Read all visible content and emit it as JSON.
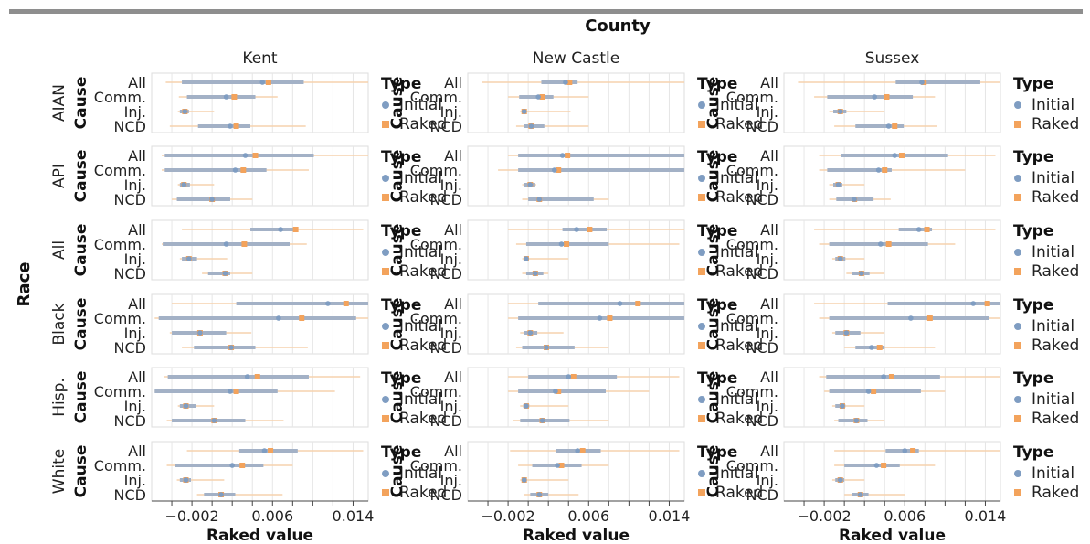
{
  "header": {
    "title": "County"
  },
  "chart_data": {
    "type": "interval-facet-grid",
    "column_facet_title": "County",
    "row_facet_title": "Race",
    "columns": [
      "Kent",
      "New Castle",
      "Sussex"
    ],
    "rows": [
      "AIAN",
      "API",
      "All",
      "Black",
      "Hisp.",
      "White"
    ],
    "y_title": "Cause",
    "causes": [
      "All",
      "Comm.",
      "Inj.",
      "NCD"
    ],
    "xlabel": "Raked value",
    "xlim": [
      -0.006,
      0.0155
    ],
    "xticks": [
      -0.002,
      0.006,
      0.014
    ],
    "xtick_labels": [
      "−0.002",
      "0.006",
      "0.014"
    ],
    "legend": {
      "title": "Type",
      "placement": "right",
      "items": [
        {
          "label": "Initial",
          "color": "#7f9dc2",
          "shape": "circle"
        },
        {
          "label": "Raked",
          "color": "#f3a35c",
          "shape": "square"
        }
      ]
    },
    "series_colors": {
      "Initial": "#7f9dc2",
      "Raked": "#f3a35c",
      "initial_band": "#a3b1c6",
      "raked_band": "#f6d2ad"
    },
    "grid": true,
    "panels": {
      "Kent": {
        "AIAN": {
          "All": {
            "initial": [
              0.005,
              -0.003,
              0.0091
            ],
            "raked": [
              0.0056,
              -0.0046,
              0.0165
            ]
          },
          "Comm.": {
            "initial": [
              0.0014,
              -0.0025,
              0.0043
            ],
            "raked": [
              0.0022,
              -0.0033,
              0.0065
            ]
          },
          "Inj.": {
            "initial": [
              -0.0027,
              -0.0032,
              -0.0023
            ],
            "raked": [
              -0.0027,
              -0.0034,
              0.0002
            ]
          },
          "NCD": {
            "initial": [
              0.0018,
              -0.0014,
              0.0038
            ],
            "raked": [
              0.0024,
              -0.0042,
              0.0093
            ]
          }
        },
        "API": {
          "All": {
            "initial": [
              0.0033,
              -0.0047,
              0.0101
            ],
            "raked": [
              0.0043,
              -0.005,
              0.017
            ]
          },
          "Comm.": {
            "initial": [
              0.0023,
              -0.0047,
              0.0054
            ],
            "raked": [
              0.0031,
              -0.005,
              0.0096
            ]
          },
          "Inj.": {
            "initial": [
              -0.0028,
              -0.0032,
              -0.0022
            ],
            "raked": [
              -0.0028,
              -0.0034,
              0.0002
            ]
          },
          "NCD": {
            "initial": [
              0.0,
              -0.0035,
              0.0018
            ],
            "raked": [
              0.0,
              -0.004,
              0.004
            ]
          }
        },
        "All": {
          "All": {
            "initial": [
              0.0068,
              0.0038,
              0.0083
            ],
            "raked": [
              0.0083,
              -0.003,
              0.015
            ]
          },
          "Comm.": {
            "initial": [
              0.0014,
              -0.0049,
              0.0077
            ],
            "raked": [
              0.0032,
              -0.005,
              0.0094
            ]
          },
          "Inj.": {
            "initial": [
              -0.0023,
              -0.003,
              -0.0015
            ],
            "raked": [
              -0.0023,
              -0.0032,
              0.0015
            ]
          },
          "NCD": {
            "initial": [
              0.0013,
              -0.0004,
              0.0018
            ],
            "raked": [
              0.0013,
              -0.001,
              0.004
            ]
          }
        },
        "Black": {
          "All": {
            "initial": [
              0.0115,
              0.0024,
              0.02
            ],
            "raked": [
              0.0133,
              -0.004,
              0.02
            ]
          },
          "Comm.": {
            "initial": [
              0.0066,
              -0.0053,
              0.0143
            ],
            "raked": [
              0.0089,
              -0.0057,
              0.018
            ]
          },
          "Inj.": {
            "initial": [
              -0.0012,
              -0.004,
              0.0014
            ],
            "raked": [
              -0.0012,
              -0.0042,
              0.0039
            ]
          },
          "NCD": {
            "initial": [
              0.0019,
              -0.0018,
              0.0043
            ],
            "raked": [
              0.0019,
              -0.003,
              0.0095
            ]
          }
        },
        "Hisp.": {
          "All": {
            "initial": [
              0.0035,
              -0.0044,
              0.0096
            ],
            "raked": [
              0.0045,
              -0.0048,
              0.0147
            ]
          },
          "Comm.": {
            "initial": [
              0.0018,
              -0.0057,
              0.0065
            ],
            "raked": [
              0.0024,
              -0.0057,
              0.0122
            ]
          },
          "Inj.": {
            "initial": [
              -0.0026,
              -0.0032,
              -0.0016
            ],
            "raked": [
              -0.0026,
              -0.0034,
              0.0002
            ]
          },
          "NCD": {
            "initial": [
              0.0002,
              -0.004,
              0.0033
            ],
            "raked": [
              0.0002,
              -0.0045,
              0.0071
            ]
          }
        },
        "White": {
          "All": {
            "initial": [
              0.0052,
              0.0027,
              0.0085
            ],
            "raked": [
              0.0058,
              -0.0025,
              0.015
            ]
          },
          "Comm.": {
            "initial": [
              0.002,
              -0.0037,
              0.0051
            ],
            "raked": [
              0.003,
              -0.0045,
              0.008
            ]
          },
          "Inj.": {
            "initial": [
              -0.0026,
              -0.0032,
              -0.0021
            ],
            "raked": [
              -0.0026,
              -0.0035,
              0.0012
            ]
          },
          "NCD": {
            "initial": [
              0.0009,
              -0.0008,
              0.0023
            ],
            "raked": [
              0.0009,
              -0.0015,
              0.007
            ]
          }
        }
      },
      "New Castle": {
        "AIAN": {
          "All": {
            "initial": [
              0.0037,
              0.0013,
              0.0049
            ],
            "raked": [
              0.0041,
              -0.0046,
              0.0165
            ]
          },
          "Comm.": {
            "initial": [
              0.001,
              -0.0009,
              0.0025
            ],
            "raked": [
              0.0014,
              -0.002,
              0.006
            ]
          },
          "Inj.": {
            "initial": [
              -0.0004,
              -0.0006,
              -0.0002
            ],
            "raked": [
              -0.0004,
              -0.0008,
              0.0042
            ]
          },
          "NCD": {
            "initial": [
              0.0003,
              -0.0004,
              0.0016
            ],
            "raked": [
              0.0003,
              -0.0012,
              0.006
            ]
          }
        },
        "API": {
          "All": {
            "initial": [
              0.0034,
              -0.001,
              0.02
            ],
            "raked": [
              0.0039,
              -0.002,
              0.02
            ]
          },
          "Comm.": {
            "initial": [
              0.0026,
              -0.001,
              0.0172
            ],
            "raked": [
              0.003,
              -0.003,
              0.02
            ]
          },
          "Inj.": {
            "initial": [
              0.0002,
              -0.0004,
              0.0007
            ],
            "raked": [
              0.0002,
              -0.0006,
              0.0008
            ]
          },
          "NCD": {
            "initial": [
              0.0011,
              0.0,
              0.0065
            ],
            "raked": [
              0.0011,
              -0.0006,
              0.008
            ]
          }
        },
        "All": {
          "All": {
            "initial": [
              0.0048,
              0.0034,
              0.0078
            ],
            "raked": [
              0.0061,
              -0.002,
              0.02
            ]
          },
          "Comm.": {
            "initial": [
              0.0033,
              -0.0002,
              0.008
            ],
            "raked": [
              0.0038,
              -0.0012,
              0.015
            ]
          },
          "Inj.": {
            "initial": [
              -0.0002,
              -0.0004,
              0.0
            ],
            "raked": [
              -0.0002,
              -0.0006,
              0.004
            ]
          },
          "NCD": {
            "initial": [
              0.0007,
              -0.0002,
              0.0015
            ],
            "raked": [
              0.0007,
              -0.0006,
              0.002
            ]
          }
        },
        "Black": {
          "All": {
            "initial": [
              0.0091,
              0.001,
              0.02
            ],
            "raked": [
              0.0109,
              -0.002,
              0.02
            ]
          },
          "Comm.": {
            "initial": [
              0.0071,
              -0.001,
              0.02
            ],
            "raked": [
              0.0081,
              -0.002,
              0.02
            ]
          },
          "Inj.": {
            "initial": [
              0.0002,
              -0.0004,
              0.0009
            ],
            "raked": [
              0.0002,
              -0.0008,
              0.0035
            ]
          },
          "NCD": {
            "initial": [
              0.0018,
              -0.0006,
              0.0046
            ],
            "raked": [
              0.0018,
              -0.0012,
              0.008
            ]
          }
        },
        "Hisp.": {
          "All": {
            "initial": [
              0.004,
              0.0,
              0.0088
            ],
            "raked": [
              0.0045,
              -0.002,
              0.015
            ]
          },
          "Comm.": {
            "initial": [
              0.0027,
              -0.001,
              0.0077
            ],
            "raked": [
              0.003,
              -0.002,
              0.012
            ]
          },
          "Inj.": {
            "initial": [
              -0.0002,
              -0.0005,
              0.0001
            ],
            "raked": [
              -0.0002,
              -0.0008,
              0.004
            ]
          },
          "NCD": {
            "initial": [
              0.0014,
              -0.0008,
              0.0041
            ],
            "raked": [
              0.0014,
              -0.0015,
              0.008
            ]
          }
        },
        "White": {
          "All": {
            "initial": [
              0.0049,
              0.0028,
              0.0072
            ],
            "raked": [
              0.0054,
              -0.0018,
              0.015
            ]
          },
          "Comm.": {
            "initial": [
              0.0029,
              0.0004,
              0.0053
            ],
            "raked": [
              0.0033,
              -0.001,
              0.008
            ]
          },
          "Inj.": {
            "initial": [
              -0.0004,
              -0.0006,
              -0.0002
            ],
            "raked": [
              -0.0004,
              -0.0008,
              0.004
            ]
          },
          "NCD": {
            "initial": [
              0.0011,
              0.0002,
              0.002
            ],
            "raked": [
              0.0011,
              -0.0004,
              0.005
            ]
          }
        }
      },
      "Sussex": {
        "AIAN": {
          "All": {
            "initial": [
              0.0077,
              0.0051,
              0.0135
            ],
            "raked": [
              0.0079,
              -0.0046,
              0.017
            ]
          },
          "Comm.": {
            "initial": [
              0.003,
              -0.0017,
              0.0068
            ],
            "raked": [
              0.0042,
              -0.003,
              0.009
            ]
          },
          "Inj.": {
            "initial": [
              -0.0004,
              -0.0011,
              0.0002
            ],
            "raked": [
              -0.0004,
              -0.0015,
              0.004
            ]
          },
          "NCD": {
            "initial": [
              0.0044,
              0.0011,
              0.0059
            ],
            "raked": [
              0.005,
              -0.001,
              0.0092
            ]
          }
        },
        "API": {
          "All": {
            "initial": [
              0.005,
              -0.0003,
              0.0103
            ],
            "raked": [
              0.0057,
              -0.0025,
              0.015
            ]
          },
          "Comm.": {
            "initial": [
              0.0034,
              -0.0017,
              0.0047
            ],
            "raked": [
              0.004,
              -0.0025,
              0.012
            ]
          },
          "Inj.": {
            "initial": [
              -0.0006,
              -0.0011,
              -0.0002
            ],
            "raked": [
              -0.0006,
              -0.0015,
              0.002
            ]
          },
          "NCD": {
            "initial": [
              0.001,
              -0.0008,
              0.0029
            ],
            "raked": [
              0.001,
              -0.0015,
              0.0046
            ]
          }
        },
        "All": {
          "All": {
            "initial": [
              0.0074,
              0.0054,
              0.0087
            ],
            "raked": [
              0.0082,
              -0.003,
              0.015
            ]
          },
          "Comm.": {
            "initial": [
              0.0036,
              -0.0015,
              0.0083
            ],
            "raked": [
              0.0044,
              -0.0025,
              0.011
            ]
          },
          "Inj.": {
            "initial": [
              -0.0004,
              -0.0009,
              0.0001
            ],
            "raked": [
              -0.0004,
              -0.0012,
              0.002
            ]
          },
          "NCD": {
            "initial": [
              0.0017,
              0.0008,
              0.0025
            ],
            "raked": [
              0.0017,
              0.0002,
              0.004
            ]
          }
        },
        "Black": {
          "All": {
            "initial": [
              0.0128,
              0.0043,
              0.02
            ],
            "raked": [
              0.0142,
              -0.003,
              0.02
            ]
          },
          "Comm.": {
            "initial": [
              0.0066,
              -0.0015,
              0.0144
            ],
            "raked": [
              0.0085,
              -0.0025,
              0.017
            ]
          },
          "Inj.": {
            "initial": [
              0.0002,
              -0.0009,
              0.0016
            ],
            "raked": [
              0.0002,
              -0.0012,
              0.004
            ]
          },
          "NCD": {
            "initial": [
              0.0027,
              0.0011,
              0.004
            ],
            "raked": [
              0.0035,
              0.0,
              0.009
            ]
          }
        },
        "Hisp.": {
          "All": {
            "initial": [
              0.0039,
              -0.0018,
              0.0095
            ],
            "raked": [
              0.0047,
              -0.0025,
              0.016
            ]
          },
          "Comm.": {
            "initial": [
              0.0024,
              -0.0015,
              0.0076
            ],
            "raked": [
              0.0029,
              -0.002,
              0.01
            ]
          },
          "Inj.": {
            "initial": [
              -0.0002,
              -0.0009,
              0.0001
            ],
            "raked": [
              -0.0002,
              -0.0012,
              0.002
            ]
          },
          "NCD": {
            "initial": [
              0.0012,
              -0.0006,
              0.0023
            ],
            "raked": [
              0.0012,
              -0.001,
              0.004
            ]
          }
        },
        "White": {
          "All": {
            "initial": [
              0.006,
              0.0041,
              0.0074
            ],
            "raked": [
              0.0068,
              -0.001,
              0.016
            ]
          },
          "Comm.": {
            "initial": [
              0.0032,
              0.0,
              0.0055
            ],
            "raked": [
              0.0039,
              -0.001,
              0.009
            ]
          },
          "Inj.": {
            "initial": [
              -0.0004,
              -0.0009,
              0.0
            ],
            "raked": [
              -0.0004,
              -0.0012,
              0.002
            ]
          },
          "NCD": {
            "initial": [
              0.0016,
              0.0008,
              0.0024
            ],
            "raked": [
              0.0016,
              0.0,
              0.006
            ]
          }
        }
      }
    }
  }
}
